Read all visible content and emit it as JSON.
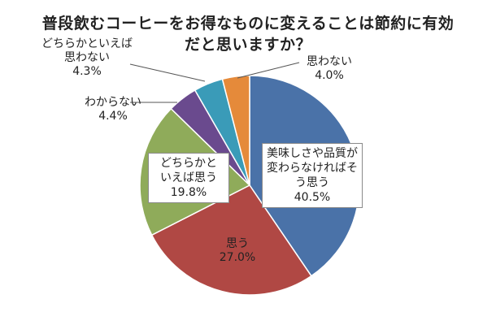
{
  "chart_data": {
    "type": "pie",
    "title_lines": [
      "普段飲むコーヒーをお得なものに変えることは節約に有効",
      "だと思いますか？"
    ],
    "slices": [
      {
        "label_lines": [
          "美味しさや品質が",
          "変わらなければそ",
          "う思う"
        ],
        "value_text": "40.5%",
        "value": 40.5,
        "color": "#4a72a8"
      },
      {
        "label_lines": [
          "思う"
        ],
        "value_text": "27.0%",
        "value": 27.0,
        "color": "#b04844"
      },
      {
        "label_lines": [
          "どちらかと",
          "いえば思う"
        ],
        "value_text": "19.8%",
        "value": 19.8,
        "color": "#8fab5a"
      },
      {
        "label_lines": [
          "わからない"
        ],
        "value_text": "4.4%",
        "value": 4.4,
        "color": "#6a4a8e"
      },
      {
        "label_lines": [
          "どちらかといえば",
          "思わない"
        ],
        "value_text": "4.3%",
        "value": 4.3,
        "color": "#3a9bb8"
      },
      {
        "label_lines": [
          "思わない"
        ],
        "value_text": "4.0%",
        "value": 4.0,
        "color": "#e58a3a"
      }
    ],
    "start_angle_deg": 0,
    "direction": "clockwise",
    "legend": "none"
  }
}
